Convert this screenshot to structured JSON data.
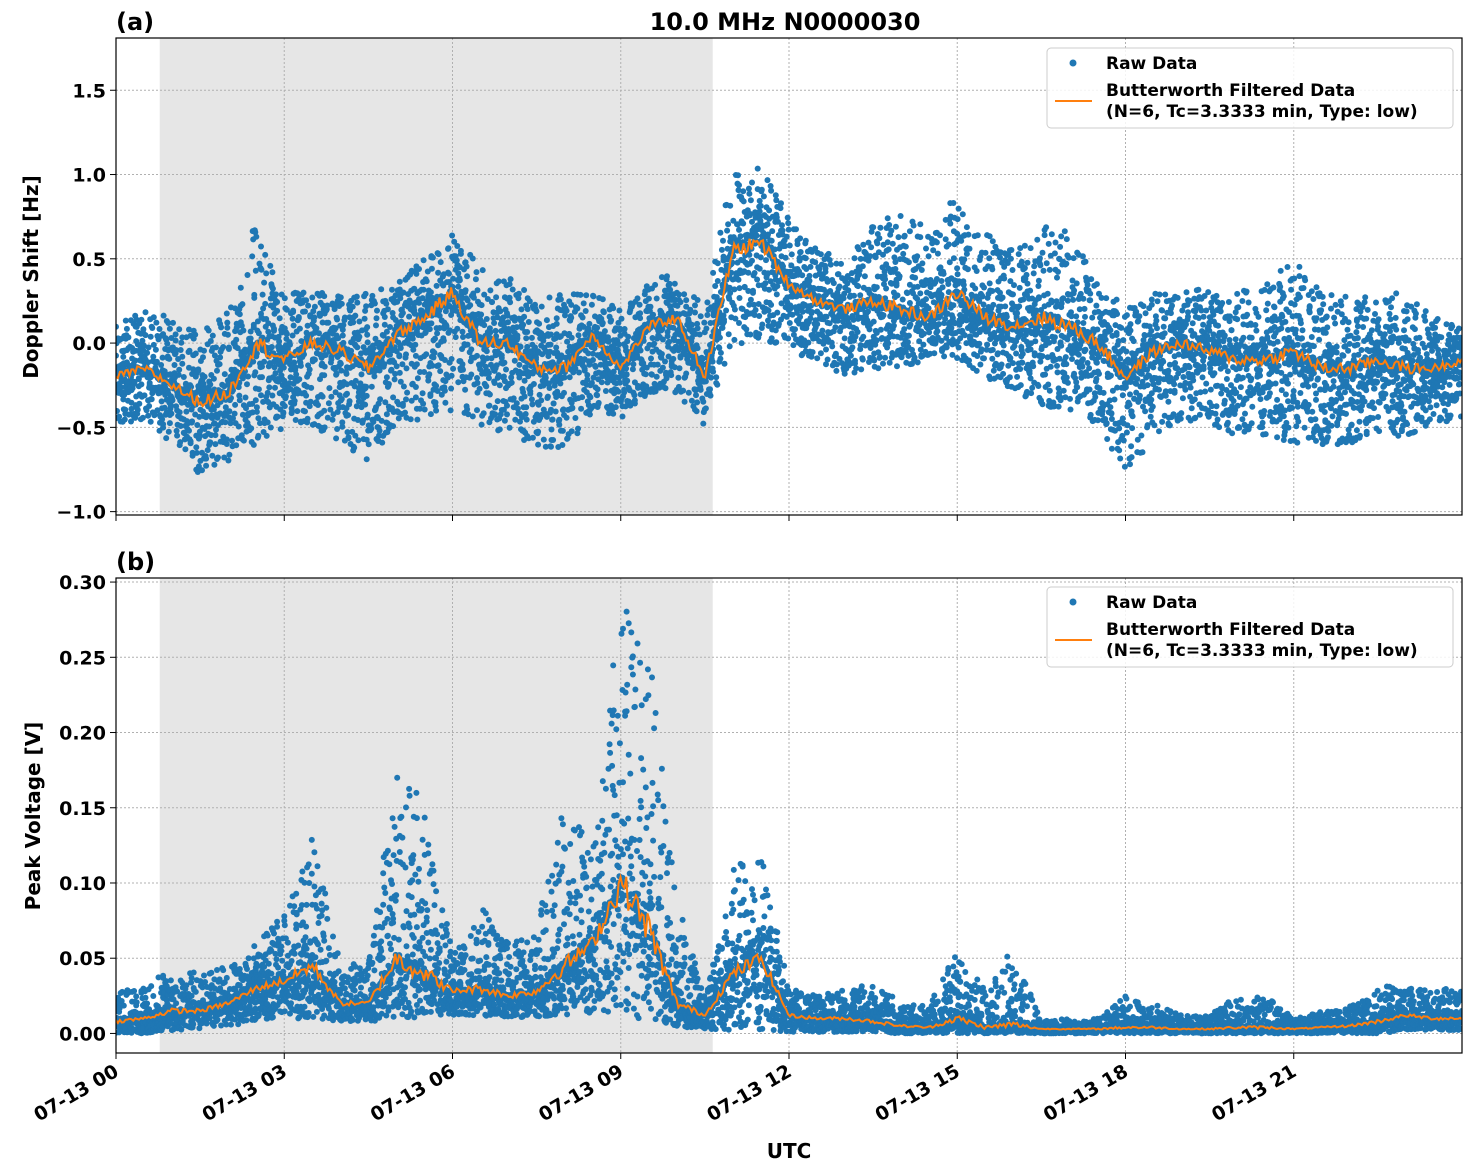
{
  "title": "10.0 MHz N0000030",
  "colors": {
    "raw": "#1f77b4",
    "filtered": "#ff7f0e",
    "shade": "#e6e6e6"
  },
  "chart_data": [
    {
      "type": "scatter",
      "panel_label": "(a)",
      "ylabel": "Doppler Shift [Hz]",
      "xlabel": "",
      "xlim_hours": [
        0,
        24
      ],
      "ylim": [
        -1.02,
        1.81
      ],
      "yticks": [
        -1.0,
        -0.5,
        0.0,
        0.5,
        1.0,
        1.5
      ],
      "ytick_labels": [
        "−1.0",
        "−0.5",
        "0.0",
        "0.5",
        "1.0",
        "1.5"
      ],
      "grid": true,
      "shaded_interval_hours": [
        0.78,
        10.64
      ],
      "legend": {
        "placement": "top-right",
        "raw": "Raw Data",
        "filtered_line1": "Butterworth Filtered Data",
        "filtered_line2": "(N=6, Tc=3.3333 min, Type: low)"
      },
      "x_hours": [
        0,
        0.5,
        1,
        1.5,
        2,
        2.5,
        3,
        3.5,
        4,
        4.5,
        5,
        5.5,
        6,
        6.5,
        7,
        7.5,
        8,
        8.5,
        9,
        9.5,
        10,
        10.5,
        11,
        11.5,
        12,
        12.5,
        13,
        13.5,
        14,
        14.5,
        15,
        15.5,
        16,
        16.5,
        17,
        17.5,
        18,
        18.5,
        19,
        19.5,
        20,
        20.5,
        21,
        21.5,
        22,
        22.5,
        23,
        23.5,
        24
      ],
      "series": [
        {
          "name": "Butterworth Filtered Data",
          "kind": "line",
          "values": [
            -0.2,
            -0.15,
            -0.25,
            -0.35,
            -0.3,
            0.0,
            -0.1,
            0.0,
            -0.05,
            -0.15,
            0.05,
            0.15,
            0.3,
            0.0,
            0.0,
            -0.15,
            -0.15,
            0.05,
            -0.15,
            0.1,
            0.15,
            -0.2,
            0.55,
            0.6,
            0.35,
            0.25,
            0.2,
            0.25,
            0.2,
            0.15,
            0.3,
            0.15,
            0.1,
            0.15,
            0.1,
            0.0,
            -0.2,
            -0.05,
            0.0,
            -0.05,
            -0.1,
            -0.1,
            -0.05,
            -0.15,
            -0.15,
            -0.1,
            -0.15,
            -0.15,
            -0.1
          ]
        },
        {
          "name": "Raw Data",
          "kind": "scatter",
          "lower": [
            -0.5,
            -0.45,
            -0.6,
            -0.8,
            -0.7,
            -0.6,
            -0.5,
            -0.5,
            -0.6,
            -0.7,
            -0.5,
            -0.45,
            -0.4,
            -0.5,
            -0.55,
            -0.6,
            -0.65,
            -0.4,
            -0.45,
            -0.3,
            -0.3,
            -0.5,
            0.0,
            0.0,
            -0.05,
            -0.1,
            -0.2,
            -0.15,
            -0.15,
            -0.1,
            -0.1,
            -0.2,
            -0.3,
            -0.4,
            -0.4,
            -0.5,
            -0.8,
            -0.55,
            -0.45,
            -0.5,
            -0.55,
            -0.55,
            -0.6,
            -0.6,
            -0.6,
            -0.55,
            -0.55,
            -0.5,
            -0.45
          ],
          "upper": [
            0.1,
            0.2,
            0.15,
            0.1,
            0.2,
            0.75,
            0.3,
            0.3,
            0.3,
            0.3,
            0.35,
            0.5,
            0.65,
            0.45,
            0.4,
            0.25,
            0.3,
            0.3,
            0.2,
            0.35,
            0.45,
            0.2,
            1.05,
            1.05,
            0.75,
            0.55,
            0.5,
            0.7,
            0.8,
            0.7,
            1.0,
            0.7,
            0.55,
            0.7,
            0.7,
            0.4,
            0.2,
            0.3,
            0.3,
            0.35,
            0.3,
            0.35,
            0.5,
            0.3,
            0.3,
            0.3,
            0.3,
            0.15,
            0.1
          ]
        }
      ]
    },
    {
      "type": "scatter",
      "panel_label": "(b)",
      "ylabel": "Peak Voltage [V]",
      "xlabel": "UTC",
      "xlim_hours": [
        0,
        24
      ],
      "ylim": [
        -0.013,
        0.3027
      ],
      "yticks": [
        0.0,
        0.05,
        0.1,
        0.15,
        0.2,
        0.25,
        0.3
      ],
      "ytick_labels": [
        "0.00",
        "0.05",
        "0.10",
        "0.15",
        "0.20",
        "0.25",
        "0.30"
      ],
      "xtick_hours": [
        0,
        3,
        6,
        9,
        12,
        15,
        18,
        21
      ],
      "xtick_labels": [
        "07-13 00",
        "07-13 03",
        "07-13 06",
        "07-13 09",
        "07-13 12",
        "07-13 15",
        "07-13 18",
        "07-13 21"
      ],
      "grid": true,
      "shaded_interval_hours": [
        0.78,
        10.64
      ],
      "legend": {
        "placement": "top-right",
        "raw": "Raw Data",
        "filtered_line1": "Butterworth Filtered Data",
        "filtered_line2": "(N=6, Tc=3.3333 min, Type: low)"
      },
      "x_hours": [
        0,
        0.5,
        1,
        1.5,
        2,
        2.5,
        3,
        3.5,
        4,
        4.5,
        5,
        5.5,
        6,
        6.5,
        7,
        7.5,
        8,
        8.5,
        9,
        9.5,
        10,
        10.5,
        11,
        11.5,
        12,
        12.5,
        13,
        13.5,
        14,
        14.5,
        15,
        15.5,
        16,
        16.5,
        17,
        17.5,
        18,
        18.5,
        19,
        19.5,
        20,
        20.5,
        21,
        21.5,
        22,
        22.5,
        23,
        23.5,
        24
      ],
      "series": [
        {
          "name": "Butterworth Filtered Data",
          "kind": "line",
          "values": [
            0.008,
            0.01,
            0.015,
            0.015,
            0.02,
            0.03,
            0.035,
            0.045,
            0.02,
            0.02,
            0.05,
            0.04,
            0.028,
            0.03,
            0.025,
            0.028,
            0.045,
            0.06,
            0.1,
            0.07,
            0.02,
            0.012,
            0.04,
            0.05,
            0.012,
            0.01,
            0.01,
            0.008,
            0.005,
            0.004,
            0.01,
            0.004,
            0.006,
            0.003,
            0.003,
            0.003,
            0.004,
            0.004,
            0.003,
            0.003,
            0.004,
            0.004,
            0.003,
            0.004,
            0.005,
            0.008,
            0.012,
            0.01,
            0.01
          ]
        },
        {
          "name": "Raw Data",
          "kind": "scatter",
          "lower": [
            0.0,
            0.0,
            0.002,
            0.003,
            0.005,
            0.008,
            0.01,
            0.01,
            0.008,
            0.008,
            0.01,
            0.01,
            0.012,
            0.012,
            0.01,
            0.01,
            0.012,
            0.012,
            0.01,
            0.01,
            0.005,
            0.002,
            0.002,
            0.002,
            0.001,
            0.001,
            0.001,
            0.001,
            0.0,
            0.0,
            0.0,
            0.0,
            0.0,
            0.0,
            0.0,
            0.0,
            0.0,
            0.0,
            0.0,
            0.0,
            0.0,
            0.0,
            0.0,
            0.0,
            0.0,
            0.0,
            0.002,
            0.002,
            0.002
          ],
          "upper": [
            0.03,
            0.03,
            0.045,
            0.04,
            0.045,
            0.06,
            0.08,
            0.13,
            0.05,
            0.045,
            0.18,
            0.16,
            0.06,
            0.09,
            0.06,
            0.07,
            0.16,
            0.13,
            0.29,
            0.26,
            0.09,
            0.025,
            0.11,
            0.12,
            0.03,
            0.025,
            0.03,
            0.035,
            0.02,
            0.018,
            0.058,
            0.03,
            0.058,
            0.008,
            0.01,
            0.01,
            0.025,
            0.02,
            0.012,
            0.012,
            0.025,
            0.025,
            0.01,
            0.015,
            0.02,
            0.035,
            0.03,
            0.03,
            0.03
          ]
        }
      ]
    }
  ]
}
